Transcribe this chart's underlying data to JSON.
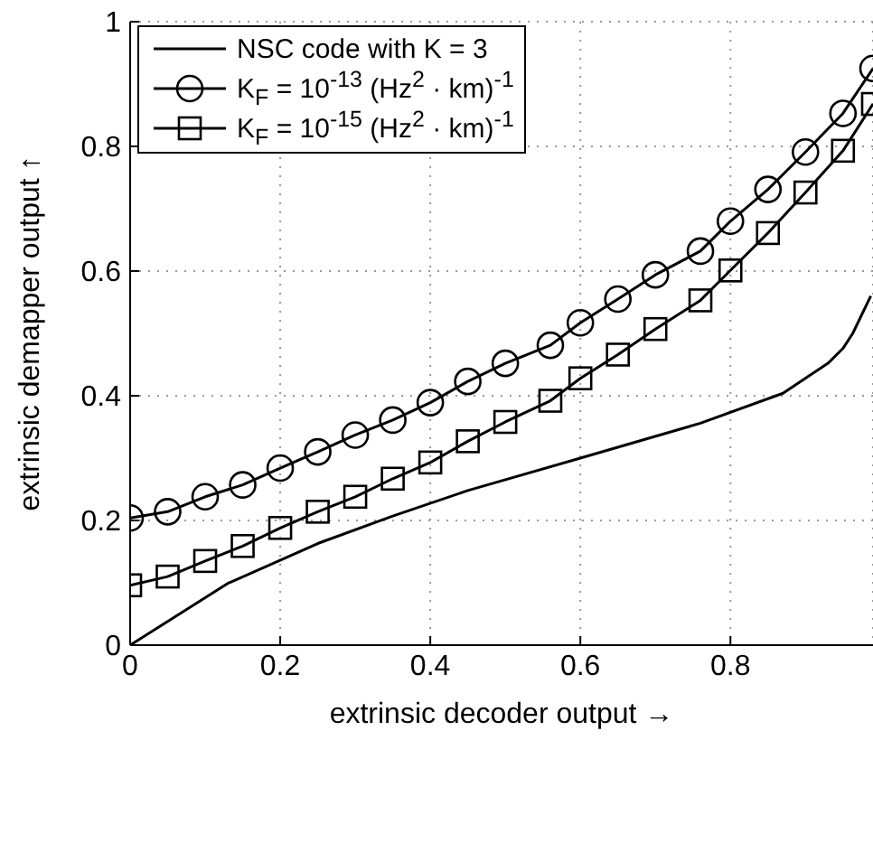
{
  "chart_data": {
    "type": "line",
    "xlabel": "extrinsic decoder output →",
    "ylabel": "extrinsic demapper output ↑",
    "xlim": [
      0,
      0.99
    ],
    "xticks": [
      0,
      0.2,
      0.4,
      0.6,
      0.8
    ],
    "ylim": [
      0,
      1
    ],
    "yticks": [
      0,
      0.2,
      0.4,
      0.6,
      0.8,
      1
    ],
    "grid": true,
    "legend": "top left",
    "line_style": "solid",
    "series": [
      {
        "name": "NSC code with K = 3",
        "color": "#000000",
        "marker": "none",
        "x": [
          0,
          0.05,
          0.13,
          0.25,
          0.35,
          0.45,
          0.6,
          0.76,
          0.87,
          0.93,
          0.95,
          0.963,
          0.987
        ],
        "values": [
          0,
          0.038,
          0.099,
          0.163,
          0.207,
          0.248,
          0.3,
          0.356,
          0.404,
          0.452,
          0.476,
          0.5,
          0.56
        ]
      },
      {
        "name": "K$_{F}$ = 10$^{-13}$ (Hz$^{2}$ · km)$^{-1}$",
        "color": "#000000",
        "marker": "circle",
        "x": [
          0,
          0.05,
          0.1,
          0.15,
          0.2,
          0.25,
          0.3,
          0.35,
          0.4,
          0.45,
          0.5,
          0.56,
          0.6,
          0.65,
          0.7,
          0.76,
          0.8,
          0.85,
          0.9,
          0.95,
          0.99
        ],
        "values": [
          0.204,
          0.214,
          0.238,
          0.257,
          0.284,
          0.31,
          0.337,
          0.361,
          0.389,
          0.423,
          0.452,
          0.481,
          0.517,
          0.555,
          0.594,
          0.632,
          0.68,
          0.731,
          0.791,
          0.853,
          0.925
        ]
      },
      {
        "name": "K$_{F}$ = 10$^{-15}$ (Hz$^{2}$ · km)$^{-1}$",
        "color": "#000000",
        "marker": "square",
        "x": [
          0,
          0.05,
          0.1,
          0.15,
          0.2,
          0.25,
          0.3,
          0.35,
          0.4,
          0.45,
          0.5,
          0.56,
          0.6,
          0.65,
          0.7,
          0.76,
          0.8,
          0.85,
          0.9,
          0.95,
          0.99
        ],
        "values": [
          0.096,
          0.11,
          0.135,
          0.159,
          0.188,
          0.214,
          0.238,
          0.267,
          0.293,
          0.327,
          0.358,
          0.392,
          0.428,
          0.466,
          0.507,
          0.553,
          0.601,
          0.661,
          0.726,
          0.793,
          0.868
        ]
      }
    ]
  }
}
